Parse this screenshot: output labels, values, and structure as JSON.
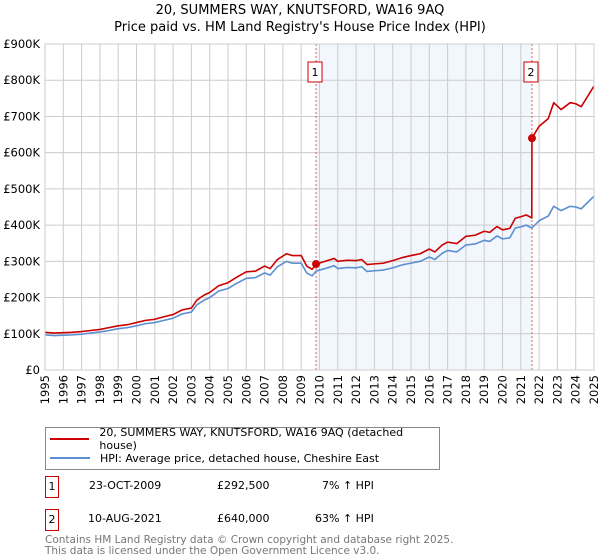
{
  "chart_data": {
    "type": "line",
    "title": "20, SUMMERS WAY, KNUTSFORD, WA16 9AQ",
    "subtitle": "Price paid vs. HM Land Registry's House Price Index (HPI)",
    "xlim": [
      1995,
      2025
    ],
    "ylim": [
      0,
      900000
    ],
    "x_ticks": [
      "1995",
      "1996",
      "1997",
      "1998",
      "1999",
      "2000",
      "2001",
      "2002",
      "2003",
      "2004",
      "2005",
      "2006",
      "2007",
      "2008",
      "2009",
      "2010",
      "2011",
      "2012",
      "2013",
      "2014",
      "2015",
      "2016",
      "2017",
      "2018",
      "2019",
      "2020",
      "2021",
      "2022",
      "2023",
      "2024",
      "2025"
    ],
    "y_ticks": [
      {
        "value": 0,
        "label": "£0"
      },
      {
        "value": 100000,
        "label": "£100K"
      },
      {
        "value": 200000,
        "label": "£200K"
      },
      {
        "value": 300000,
        "label": "£300K"
      },
      {
        "value": 400000,
        "label": "£400K"
      },
      {
        "value": 500000,
        "label": "£500K"
      },
      {
        "value": 600000,
        "label": "£600K"
      },
      {
        "value": 700000,
        "label": "£700K"
      },
      {
        "value": 800000,
        "label": "£800K"
      },
      {
        "value": 900000,
        "label": "£900K"
      }
    ],
    "grid": true,
    "shaded_range": [
      2009.81,
      2021.61
    ],
    "series": [
      {
        "name": "20, SUMMERS WAY, KNUTSFORD, WA16 9AQ (detached house)",
        "color": "#cc0000",
        "unit": "thousand GBP",
        "points": [
          [
            1995,
            104
          ],
          [
            1995.5,
            102
          ],
          [
            1996,
            103
          ],
          [
            1996.5,
            104
          ],
          [
            1997,
            106
          ],
          [
            1997.5,
            109
          ],
          [
            1998,
            112
          ],
          [
            1998.5,
            117
          ],
          [
            1999,
            122
          ],
          [
            1999.5,
            125
          ],
          [
            2000,
            131
          ],
          [
            2000.5,
            137
          ],
          [
            2001,
            140
          ],
          [
            2001.5,
            147
          ],
          [
            2002,
            153
          ],
          [
            2002.5,
            166
          ],
          [
            2003,
            171
          ],
          [
            2003.3,
            193
          ],
          [
            2003.7,
            207
          ],
          [
            2004,
            214
          ],
          [
            2004.5,
            233
          ],
          [
            2005,
            241
          ],
          [
            2005.5,
            257
          ],
          [
            2006,
            271
          ],
          [
            2006.5,
            273
          ],
          [
            2007,
            287
          ],
          [
            2007.3,
            280
          ],
          [
            2007.7,
            305
          ],
          [
            2008.2,
            321
          ],
          [
            2008.5,
            316
          ],
          [
            2009,
            316
          ],
          [
            2009.3,
            287
          ],
          [
            2009.6,
            278
          ],
          [
            2009.81,
            292.5
          ],
          [
            2010.3,
            300
          ],
          [
            2010.8,
            308
          ],
          [
            2011,
            300
          ],
          [
            2011.5,
            303
          ],
          [
            2012,
            302
          ],
          [
            2012.3,
            305
          ],
          [
            2012.6,
            291
          ],
          [
            2013,
            293
          ],
          [
            2013.5,
            295
          ],
          [
            2014,
            302
          ],
          [
            2014.5,
            310
          ],
          [
            2015,
            316
          ],
          [
            2015.5,
            321
          ],
          [
            2016,
            334
          ],
          [
            2016.3,
            326
          ],
          [
            2016.7,
            345
          ],
          [
            2017,
            353
          ],
          [
            2017.5,
            349
          ],
          [
            2018,
            369
          ],
          [
            2018.5,
            372
          ],
          [
            2019,
            383
          ],
          [
            2019.3,
            380
          ],
          [
            2019.7,
            396
          ],
          [
            2020,
            387
          ],
          [
            2020.4,
            391
          ],
          [
            2020.7,
            419
          ],
          [
            2021,
            423
          ],
          [
            2021.3,
            428
          ],
          [
            2021.6,
            420
          ],
          [
            2021.61,
            640
          ],
          [
            2022,
            673
          ],
          [
            2022.5,
            694
          ],
          [
            2022.8,
            738
          ],
          [
            2023.2,
            719
          ],
          [
            2023.7,
            738
          ],
          [
            2024,
            735
          ],
          [
            2024.3,
            727
          ],
          [
            2024.6,
            751
          ],
          [
            2025,
            784
          ]
        ]
      },
      {
        "name": "HPI: Average price, detached house, Cheshire East",
        "color": "#5b8fd0",
        "unit": "thousand GBP",
        "points": [
          [
            1995,
            97
          ],
          [
            1995.5,
            95
          ],
          [
            1996,
            96
          ],
          [
            1996.5,
            97
          ],
          [
            1997,
            99
          ],
          [
            1997.5,
            102
          ],
          [
            1998,
            105
          ],
          [
            1998.5,
            109
          ],
          [
            1999,
            114
          ],
          [
            1999.5,
            117
          ],
          [
            2000,
            122
          ],
          [
            2000.5,
            128
          ],
          [
            2001,
            131
          ],
          [
            2001.5,
            137
          ],
          [
            2002,
            143
          ],
          [
            2002.5,
            155
          ],
          [
            2003,
            160
          ],
          [
            2003.3,
            180
          ],
          [
            2003.7,
            193
          ],
          [
            2004,
            200
          ],
          [
            2004.5,
            218
          ],
          [
            2005,
            225
          ],
          [
            2005.5,
            240
          ],
          [
            2006,
            253
          ],
          [
            2006.5,
            255
          ],
          [
            2007,
            268
          ],
          [
            2007.3,
            262
          ],
          [
            2007.7,
            285
          ],
          [
            2008.2,
            300
          ],
          [
            2008.5,
            295
          ],
          [
            2009,
            295
          ],
          [
            2009.3,
            268
          ],
          [
            2009.6,
            260
          ],
          [
            2009.81,
            273
          ],
          [
            2010.3,
            280
          ],
          [
            2010.8,
            288
          ],
          [
            2011,
            280
          ],
          [
            2011.5,
            283
          ],
          [
            2012,
            282
          ],
          [
            2012.3,
            285
          ],
          [
            2012.6,
            272
          ],
          [
            2013,
            274
          ],
          [
            2013.5,
            276
          ],
          [
            2014,
            282
          ],
          [
            2014.5,
            290
          ],
          [
            2015,
            295
          ],
          [
            2015.5,
            300
          ],
          [
            2016,
            312
          ],
          [
            2016.3,
            305
          ],
          [
            2016.7,
            322
          ],
          [
            2017,
            330
          ],
          [
            2017.5,
            326
          ],
          [
            2018,
            345
          ],
          [
            2018.5,
            348
          ],
          [
            2019,
            358
          ],
          [
            2019.3,
            355
          ],
          [
            2019.7,
            370
          ],
          [
            2020,
            362
          ],
          [
            2020.4,
            365
          ],
          [
            2020.7,
            392
          ],
          [
            2021,
            395
          ],
          [
            2021.3,
            400
          ],
          [
            2021.6,
            392
          ],
          [
            2022,
            412
          ],
          [
            2022.5,
            425
          ],
          [
            2022.8,
            452
          ],
          [
            2023.2,
            440
          ],
          [
            2023.7,
            452
          ],
          [
            2024,
            450
          ],
          [
            2024.3,
            445
          ],
          [
            2024.6,
            460
          ],
          [
            2025,
            480
          ]
        ]
      }
    ],
    "sales": [
      {
        "label": "1",
        "x": 2009.81,
        "value": 292.5,
        "date": "23-OCT-2009",
        "price": "£292,500",
        "hpi_delta": "7% ↑ HPI"
      },
      {
        "label": "2",
        "x": 2021.61,
        "value": 640,
        "date": "10-AUG-2021",
        "price": "£640,000",
        "hpi_delta": "63% ↑ HPI"
      }
    ],
    "legend_placement": "below"
  },
  "legend": {
    "red": "20, SUMMERS WAY, KNUTSFORD, WA16 9AQ (detached house)",
    "blue": "HPI: Average price, detached house, Cheshire East"
  },
  "footer": {
    "line1": "Contains HM Land Registry data © Crown copyright and database right 2025.",
    "line2": "This data is licensed under the Open Government Licence v3.0."
  }
}
